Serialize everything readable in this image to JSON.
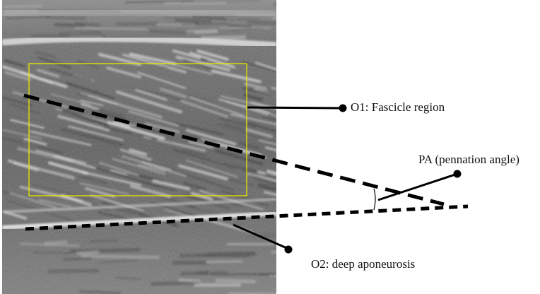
{
  "figure": {
    "labels": {
      "o1": "O1: Fascicle region",
      "o2": "O2: deep aponeurosis",
      "pa": "PA (pennation angle)"
    },
    "colors": {
      "background": "#ffffff",
      "roi_box": "#e8e800",
      "ink": "#000000",
      "ultrasound_base": "#6f6f6f"
    }
  }
}
